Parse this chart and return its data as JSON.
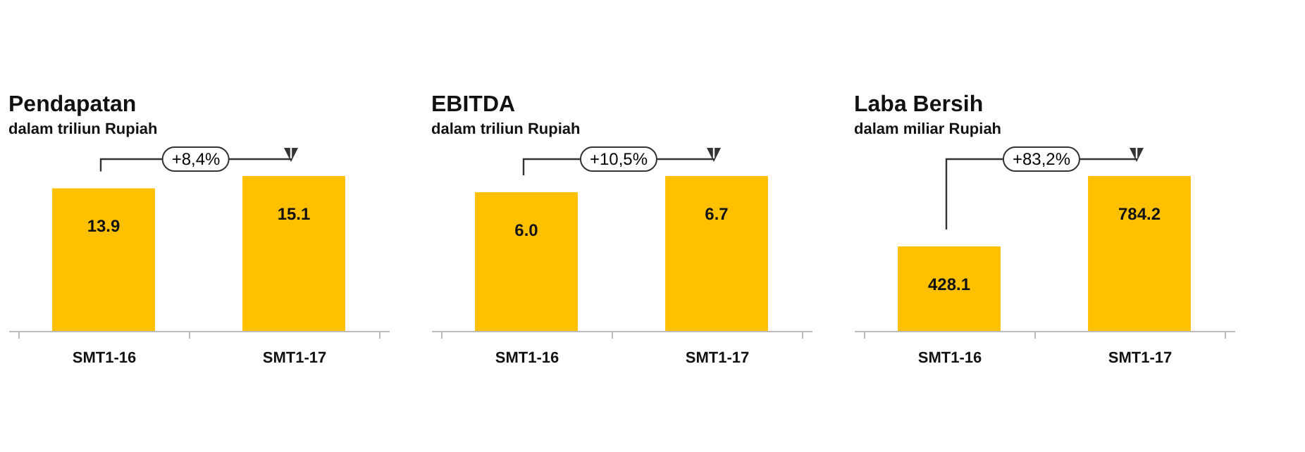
{
  "chart_data": [
    {
      "type": "bar",
      "title": "Pendapatan",
      "subtitle": "dalam triliun Rupiah",
      "categories": [
        "SMT1-16",
        "SMT1-17"
      ],
      "values": [
        13.9,
        15.1
      ],
      "value_labels": [
        "13.9",
        "15.1"
      ],
      "color": "#ffc000",
      "annotations": [
        "+8,4%"
      ]
    },
    {
      "type": "bar",
      "title": "EBITDA",
      "subtitle": "dalam triliun Rupiah",
      "categories": [
        "SMT1-16",
        "SMT1-17"
      ],
      "values": [
        6.0,
        6.7
      ],
      "value_labels": [
        "6.0",
        "6.7"
      ],
      "color": "#ffc000",
      "annotations": [
        "+10,5%"
      ]
    },
    {
      "type": "bar",
      "title": "Laba Bersih",
      "subtitle": "dalam miliar Rupiah",
      "categories": [
        "SMT1-16",
        "SMT1-17"
      ],
      "values": [
        428.1,
        784.2
      ],
      "value_labels": [
        "428.1",
        "784.2"
      ],
      "color": "#ffc000",
      "annotations": [
        "+83,2%"
      ]
    }
  ]
}
